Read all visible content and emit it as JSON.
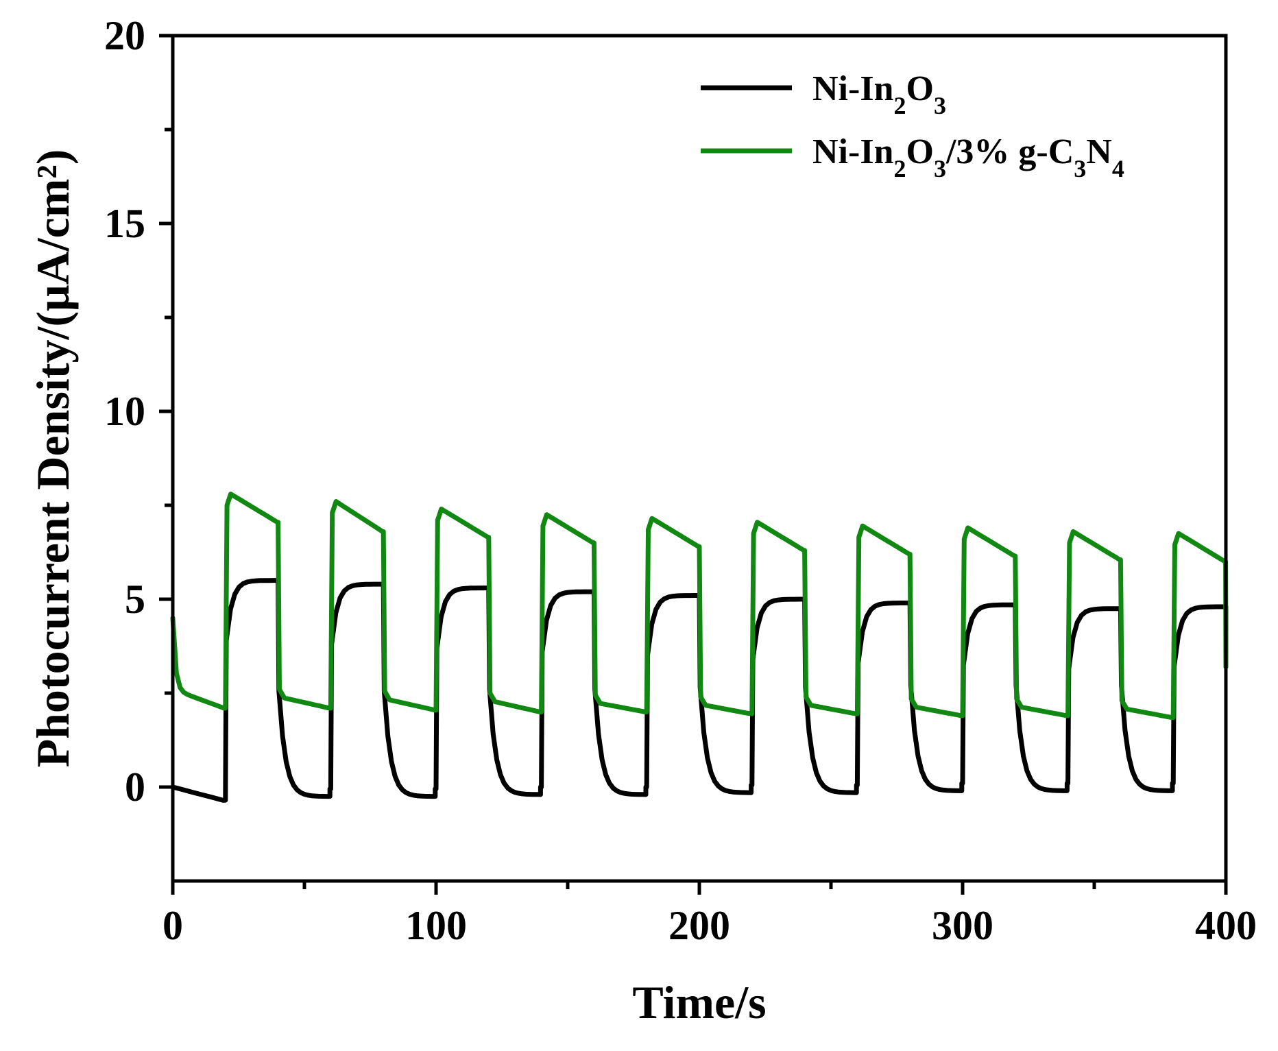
{
  "chart_data": {
    "type": "line",
    "xlabel": "Time/s",
    "ylabel": "Photocurrent Density/(μA/cm²)",
    "xlim": [
      0,
      400
    ],
    "ylim": [
      -2.5,
      20
    ],
    "x_ticks": [
      0,
      100,
      200,
      300,
      400
    ],
    "x_tick_labels": [
      "0",
      "100",
      "200",
      "300",
      "400"
    ],
    "y_ticks": [
      0,
      5,
      10,
      15,
      20
    ],
    "y_tick_labels": [
      "0",
      "5",
      "10",
      "15",
      "20"
    ],
    "grid": false,
    "legend_position": "top-right",
    "legend": [
      {
        "series_index": 0,
        "parts": [
          [
            "Ni-In",
            ""
          ],
          [
            "2",
            "sub"
          ],
          [
            "O",
            ""
          ],
          [
            "3",
            "sub"
          ]
        ]
      },
      {
        "series_index": 1,
        "parts": [
          [
            "Ni-In",
            ""
          ],
          [
            "2",
            "sub"
          ],
          [
            "O",
            ""
          ],
          [
            "3",
            "sub"
          ],
          [
            "/3% g-C",
            ""
          ],
          [
            "3",
            "sub"
          ],
          [
            "N",
            ""
          ],
          [
            "4",
            "sub"
          ]
        ]
      }
    ],
    "on_off_period_s": 20,
    "series": [
      {
        "name": "Ni-In2O3",
        "color": "#000000",
        "first_off_start": 0.0,
        "first_off_end": -0.35,
        "on_plateau": [
          5.5,
          5.4,
          5.3,
          5.2,
          5.1,
          5.0,
          4.9,
          4.85,
          4.75,
          4.8
        ],
        "off_end": [
          -0.05,
          -0.05,
          0.0,
          0.0,
          0.05,
          0.05,
          0.1,
          0.1,
          0.1
        ]
      },
      {
        "name": "Ni-In2O3/3% g-C3N4",
        "color": "#118811",
        "first_off_start": 4.5,
        "first_off_end": 2.1,
        "on_peak": [
          7.8,
          7.6,
          7.4,
          7.25,
          7.15,
          7.05,
          6.95,
          6.9,
          6.8,
          6.75
        ],
        "on_end": [
          7.05,
          6.8,
          6.65,
          6.5,
          6.4,
          6.3,
          6.2,
          6.15,
          6.05,
          6.0
        ],
        "off_start": [
          2.4,
          2.35,
          2.3,
          2.25,
          2.2,
          2.2,
          2.15,
          2.15,
          2.1
        ],
        "off_end": [
          2.1,
          2.05,
          2.0,
          2.0,
          1.95,
          1.95,
          1.9,
          1.9,
          1.85
        ]
      }
    ]
  }
}
